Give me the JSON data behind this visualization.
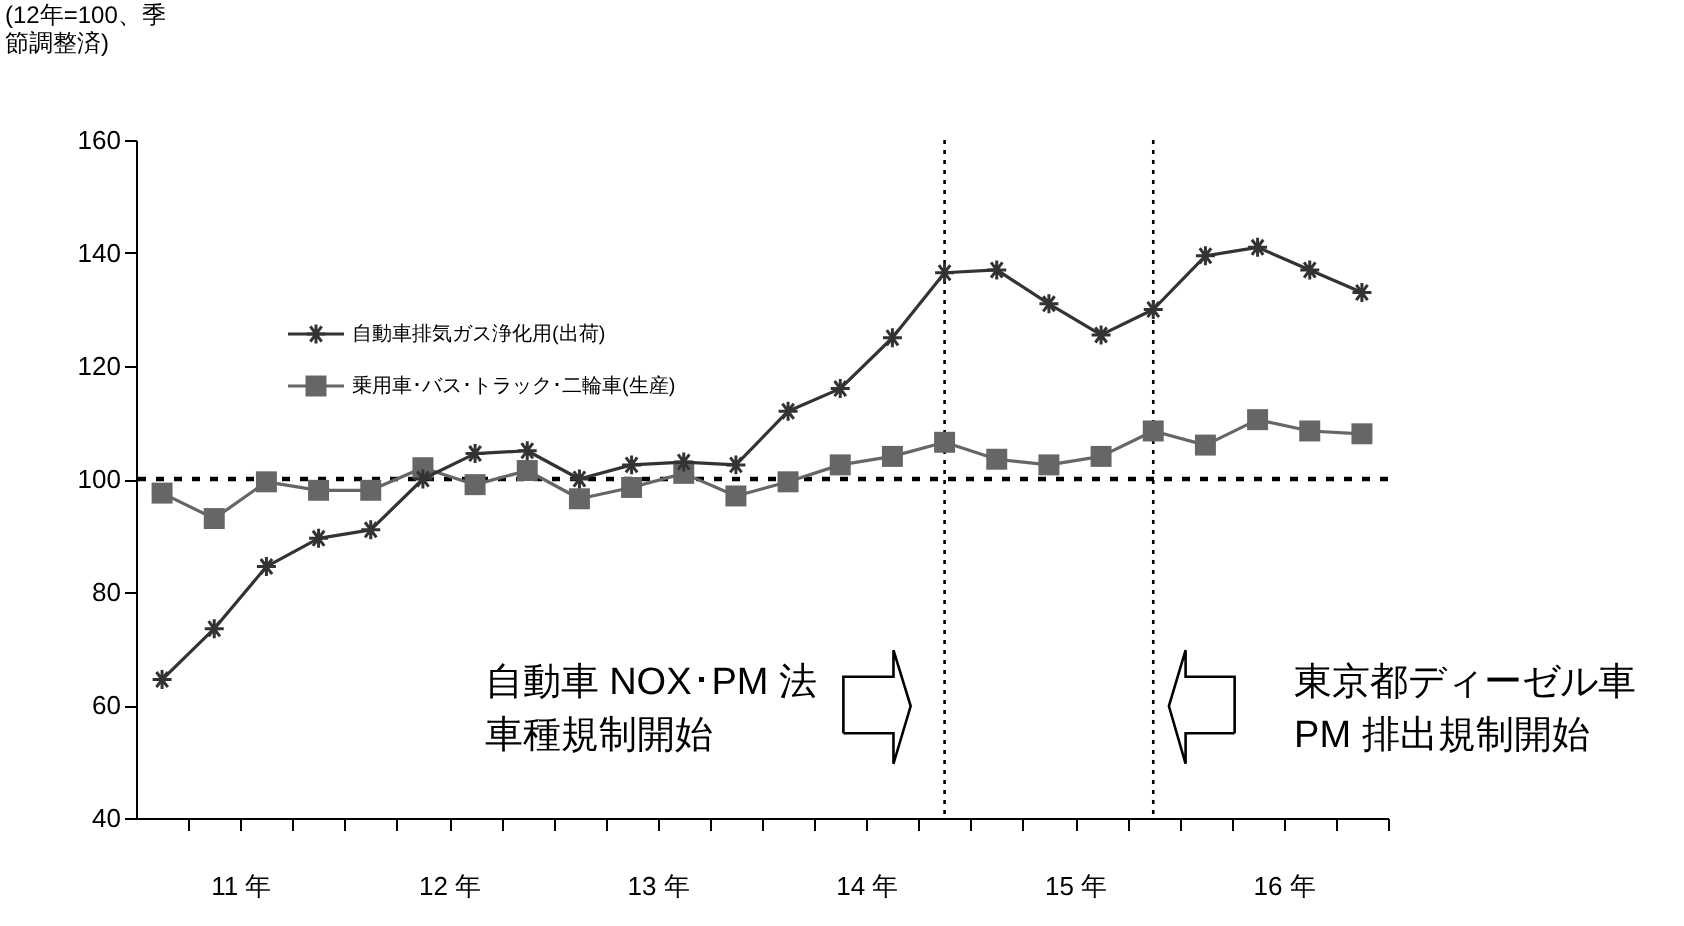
{
  "chart_data": {
    "type": "line",
    "ylabel": "(12年=100、季節調整済)",
    "x": [
      10.625,
      10.875,
      11.125,
      11.375,
      11.625,
      11.875,
      12.125,
      12.375,
      12.625,
      12.875,
      13.125,
      13.375,
      13.625,
      13.875,
      14.125,
      14.375,
      14.625,
      14.875,
      15.125,
      15.375,
      15.625,
      15.875,
      16.125,
      16.375
    ],
    "xlim": [
      10.5,
      16.5
    ],
    "xticks": [
      {
        "value": 10.75,
        "label": null
      },
      {
        "value": 11,
        "label": "11 年"
      },
      {
        "value": 11.25,
        "label": null
      },
      {
        "value": 11.5,
        "label": null
      },
      {
        "value": 11.75,
        "label": null
      },
      {
        "value": 12,
        "label": "12 年"
      },
      {
        "value": 12.25,
        "label": null
      },
      {
        "value": 12.5,
        "label": null
      },
      {
        "value": 12.75,
        "label": null
      },
      {
        "value": 13,
        "label": "13 年"
      },
      {
        "value": 13.25,
        "label": null
      },
      {
        "value": 13.5,
        "label": null
      },
      {
        "value": 13.75,
        "label": null
      },
      {
        "value": 14,
        "label": "14 年"
      },
      {
        "value": 14.25,
        "label": null
      },
      {
        "value": 14.5,
        "label": null
      },
      {
        "value": 14.75,
        "label": null
      },
      {
        "value": 15,
        "label": "15 年"
      },
      {
        "value": 15.25,
        "label": null
      },
      {
        "value": 15.5,
        "label": null
      },
      {
        "value": 15.75,
        "label": null
      },
      {
        "value": 16,
        "label": "16 年"
      },
      {
        "value": 16.25,
        "label": null
      },
      {
        "value": 16.5,
        "label": null
      }
    ],
    "ylim": [
      40,
      160
    ],
    "yticks": [
      40,
      60,
      80,
      100,
      120,
      140,
      160
    ],
    "series": [
      {
        "name": "自動車排気ガス浄化用(出荷)",
        "color": "#333333",
        "marker": "cross",
        "values": [
          64.5,
          73.5,
          84.5,
          89.5,
          91,
          100,
          104.5,
          105,
          100,
          102.5,
          103,
          102.5,
          112,
          116,
          125,
          136.5,
          137,
          131,
          125.5,
          130,
          139.5,
          141,
          137,
          133
        ]
      },
      {
        "name": "乗用車･バス･トラック･二輪車(生産)",
        "color": "#666666",
        "marker": "square",
        "values": [
          97.5,
          93,
          99.5,
          98,
          98,
          102,
          99,
          101.5,
          96.5,
          98.5,
          101,
          97,
          99.5,
          102.5,
          104,
          106.5,
          103.5,
          102.5,
          104,
          108.5,
          106,
          110.5,
          108.5,
          108
        ]
      }
    ],
    "ref_lines": [
      {
        "axis": "y",
        "value": 100,
        "label": null,
        "line_style": "dotted",
        "color": "#000000"
      },
      {
        "axis": "x",
        "value": 14.375,
        "label": null,
        "line_style": "dotted",
        "color": "#000000"
      },
      {
        "axis": "x",
        "value": 15.375,
        "label": null,
        "line_style": "dotted",
        "color": "#000000"
      }
    ],
    "annotations": [
      "自動車 NOX･PM 法",
      "車種規制開始",
      "東京都ディーゼル車",
      "PM 排出規制開始"
    ],
    "legend": "top left",
    "grid": false,
    "line_style": "solid"
  }
}
